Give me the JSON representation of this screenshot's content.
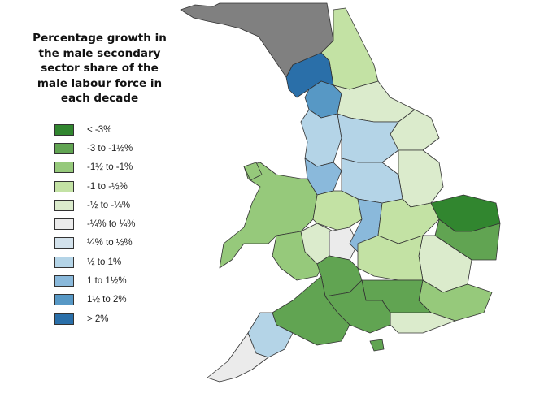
{
  "title": "Percentage growth in the male secondary sector share of the male labour force in each decade",
  "legend": [
    {
      "label": "< -3%",
      "color": "#31862f"
    },
    {
      "label": "-3 to -1½%",
      "color": "#61a452"
    },
    {
      "label": "-1½ to -1%",
      "color": "#96c97b"
    },
    {
      "label": "-1 to -½%",
      "color": "#c3e2a4"
    },
    {
      "label": "-½ to -¼%",
      "color": "#dbebcc"
    },
    {
      "label": "-¼% to ¼%",
      "color": "#ebebeb"
    },
    {
      "label": "¼% to ½%",
      "color": "#d3e2ec"
    },
    {
      "label": "½ to 1%",
      "color": "#b4d4e7"
    },
    {
      "label": "1 to 1½%",
      "color": "#8ab9db"
    },
    {
      "label": "1½ to 2%",
      "color": "#5798c5"
    },
    {
      "label": "> 2%",
      "color": "#2a6fa9"
    }
  ],
  "scotland_color": "#808080",
  "regions": [
    3,
    10,
    9,
    4,
    4,
    7,
    7,
    4,
    8,
    7,
    2,
    2,
    3,
    4,
    5,
    8,
    3,
    0,
    1,
    4,
    3,
    1,
    2,
    4,
    1,
    1,
    1,
    7,
    5,
    1,
    2
  ]
}
